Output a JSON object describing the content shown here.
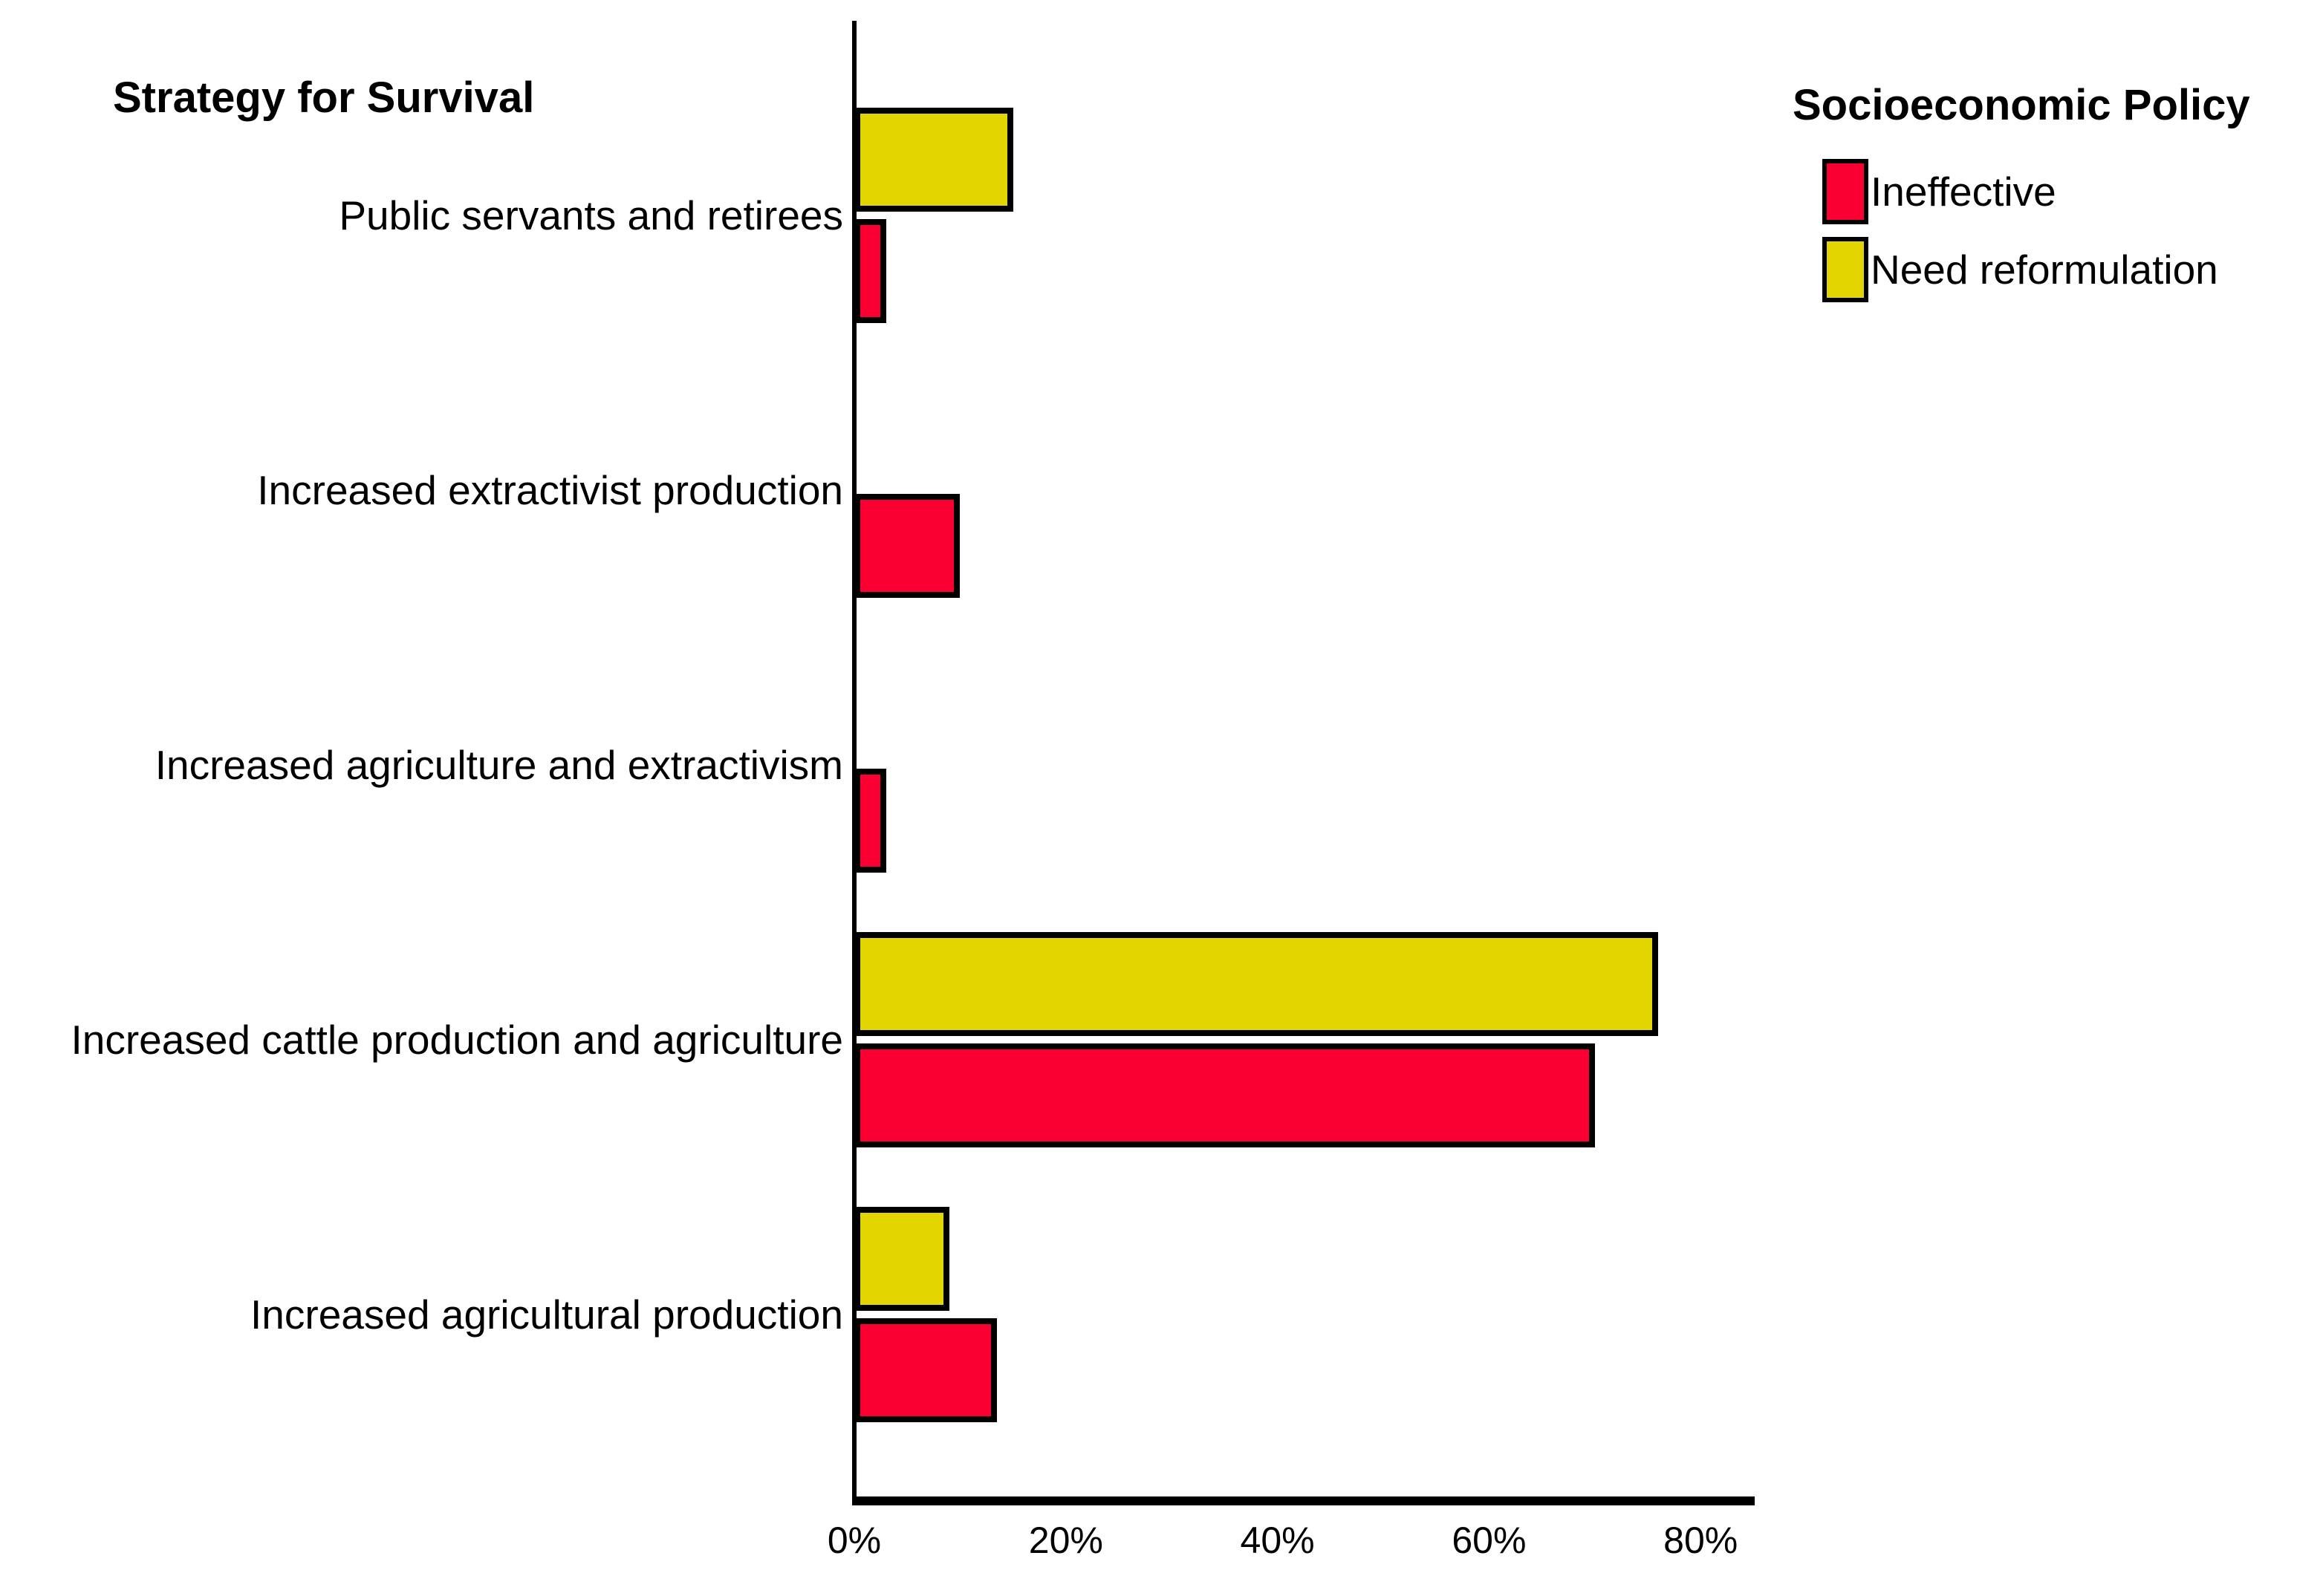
{
  "chart_data": {
    "type": "bar",
    "orientation": "horizontal",
    "title": "Strategy for Survival",
    "categories": [
      "Public servants and retirees",
      "Increased extractivist production",
      "Increased agriculture and extractivism",
      "Increased cattle production and agriculture",
      "Increased agricultural production"
    ],
    "series": [
      {
        "name": "Ineffective",
        "color": "#FA0032",
        "values": [
          3,
          10,
          3,
          70,
          13.5
        ]
      },
      {
        "name": "Need reformulation",
        "color": "#E3D600",
        "values": [
          15,
          0,
          0,
          76,
          9
        ]
      }
    ],
    "group_order_top_to_bottom": [
      "Need reformulation",
      "Ineffective"
    ],
    "x_axis": {
      "tick_labels": [
        "0%",
        "20%",
        "40%",
        "60%",
        "80%"
      ],
      "tick_values": [
        0,
        20,
        40,
        60,
        80
      ],
      "range_pct": [
        0,
        85
      ],
      "unit": "%"
    },
    "legend_title": "Socioeconomic Policy",
    "legend_position": "top-right",
    "grid": false,
    "background": "#ffffff",
    "axis_color": "#000000",
    "bar_border_color": "#000000"
  }
}
